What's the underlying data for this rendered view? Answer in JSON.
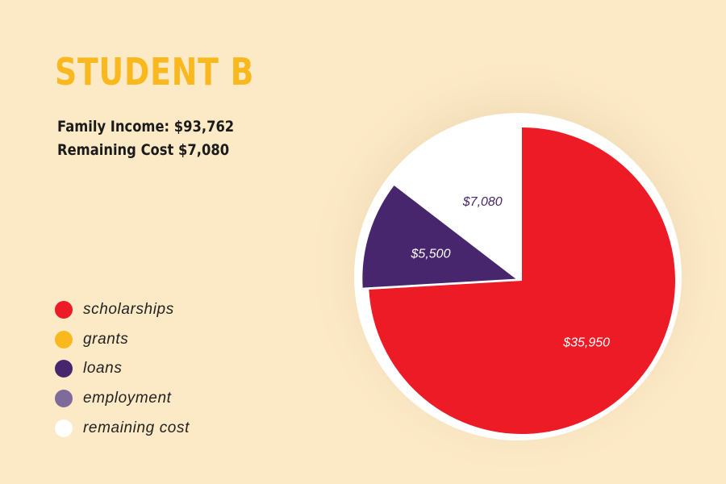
{
  "header": {
    "title": "STUDENT B",
    "family_income": "Family Income: $93,762",
    "remaining_cost": "Remaining Cost $7,080"
  },
  "legend": [
    {
      "label": "scholarships",
      "color": "#ec1b25"
    },
    {
      "label": "grants",
      "color": "#f9b81e"
    },
    {
      "label": "loans",
      "color": "#47266e"
    },
    {
      "label": "employment",
      "color": "#7f6a9c"
    },
    {
      "label": "remaining cost",
      "color": "#ffffff"
    }
  ],
  "chart_data": {
    "type": "pie",
    "title": "STUDENT B",
    "slices": [
      {
        "label": "scholarships",
        "value": 35950,
        "display": "$35,950",
        "color": "#ec1b25",
        "label_color": "#ffffff"
      },
      {
        "label": "loans",
        "value": 5500,
        "display": "$5,500",
        "color": "#47266e",
        "label_color": "#ffffff",
        "exploded": true
      },
      {
        "label": "remaining cost",
        "value": 7080,
        "display": "$7,080",
        "color": "#ffffff",
        "label_color": "#47266e"
      }
    ],
    "legend_placement": "left"
  }
}
